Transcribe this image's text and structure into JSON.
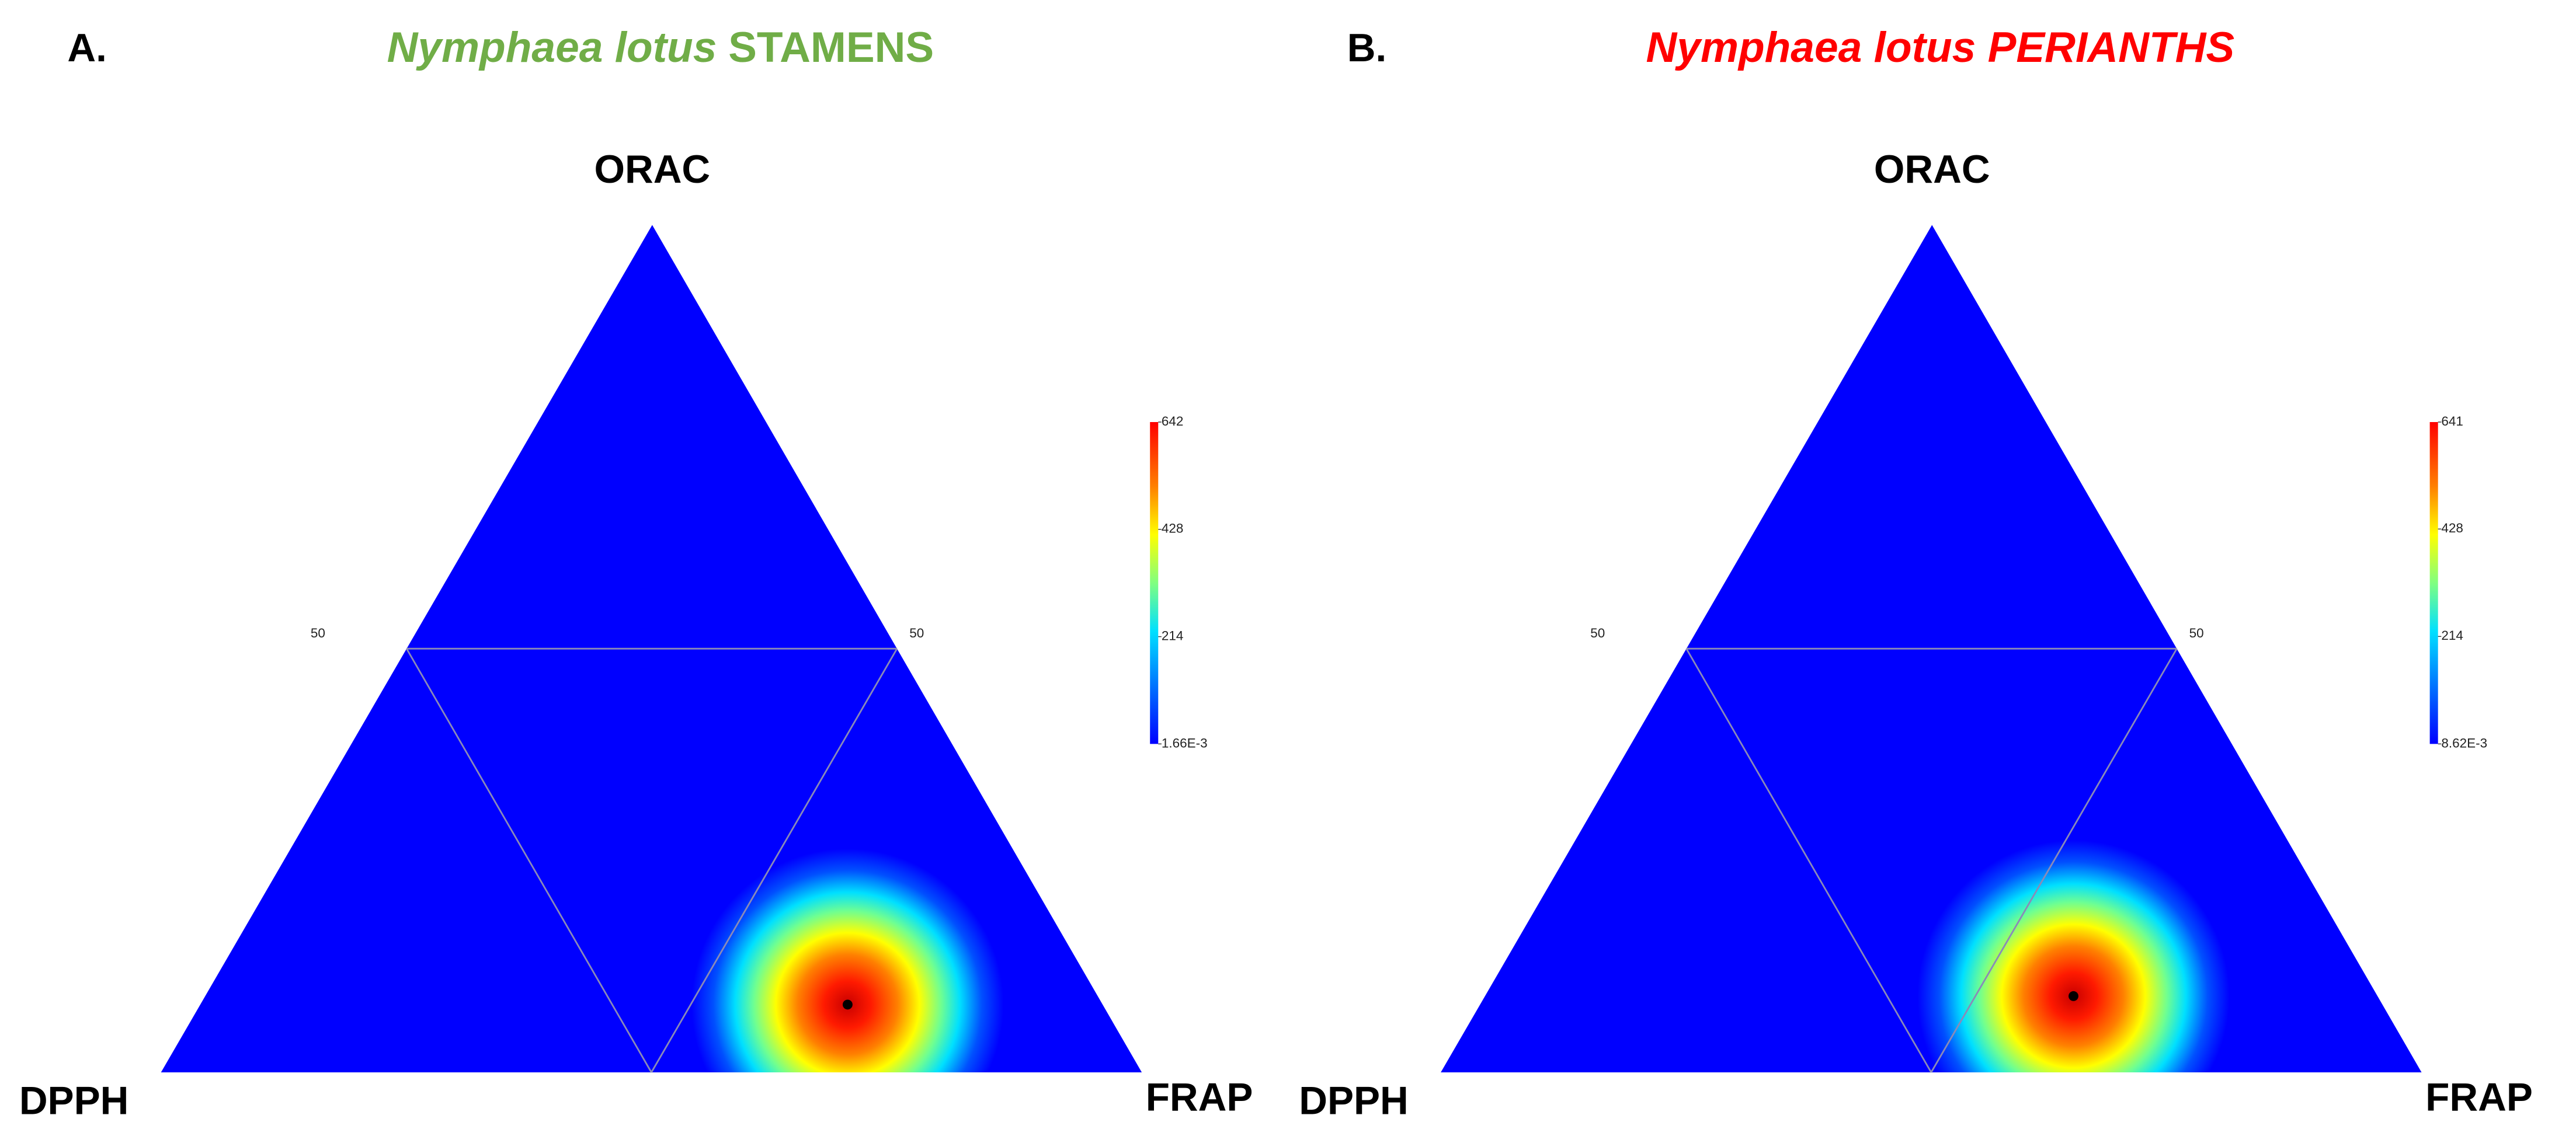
{
  "chart_data": [
    {
      "type": "ternary",
      "panel": "A.",
      "title_parts": [
        {
          "text": "Nymphaea lotus",
          "italic": true
        },
        {
          "text": "STAMENS",
          "italic": false
        }
      ],
      "title_color": "#70ad47",
      "labels": [
        "ORAC",
        "DPPH",
        "FRAP"
      ],
      "ticks": [
        50
      ],
      "peak": [
        8,
        26,
        66
      ],
      "zlim": [
        0.00166,
        642
      ],
      "zticks": [
        {
          "value": 0.00166,
          "label": "1.66E-3"
        },
        214,
        428,
        642
      ]
    },
    {
      "type": "ternary",
      "panel": "B.",
      "title_parts": [
        {
          "text": "Nymphaea lotus PERIANTHS",
          "italic": true
        }
      ],
      "title_color": "#ff0000",
      "labels": [
        "ORAC",
        "DPPH",
        "FRAP"
      ],
      "ticks": [
        50
      ],
      "peak": [
        9,
        31,
        60
      ],
      "zlim": [
        0.00862,
        641
      ],
      "zticks": [
        {
          "value": 0.00862,
          "label": "8.62E-3"
        },
        214,
        428,
        641
      ]
    }
  ]
}
